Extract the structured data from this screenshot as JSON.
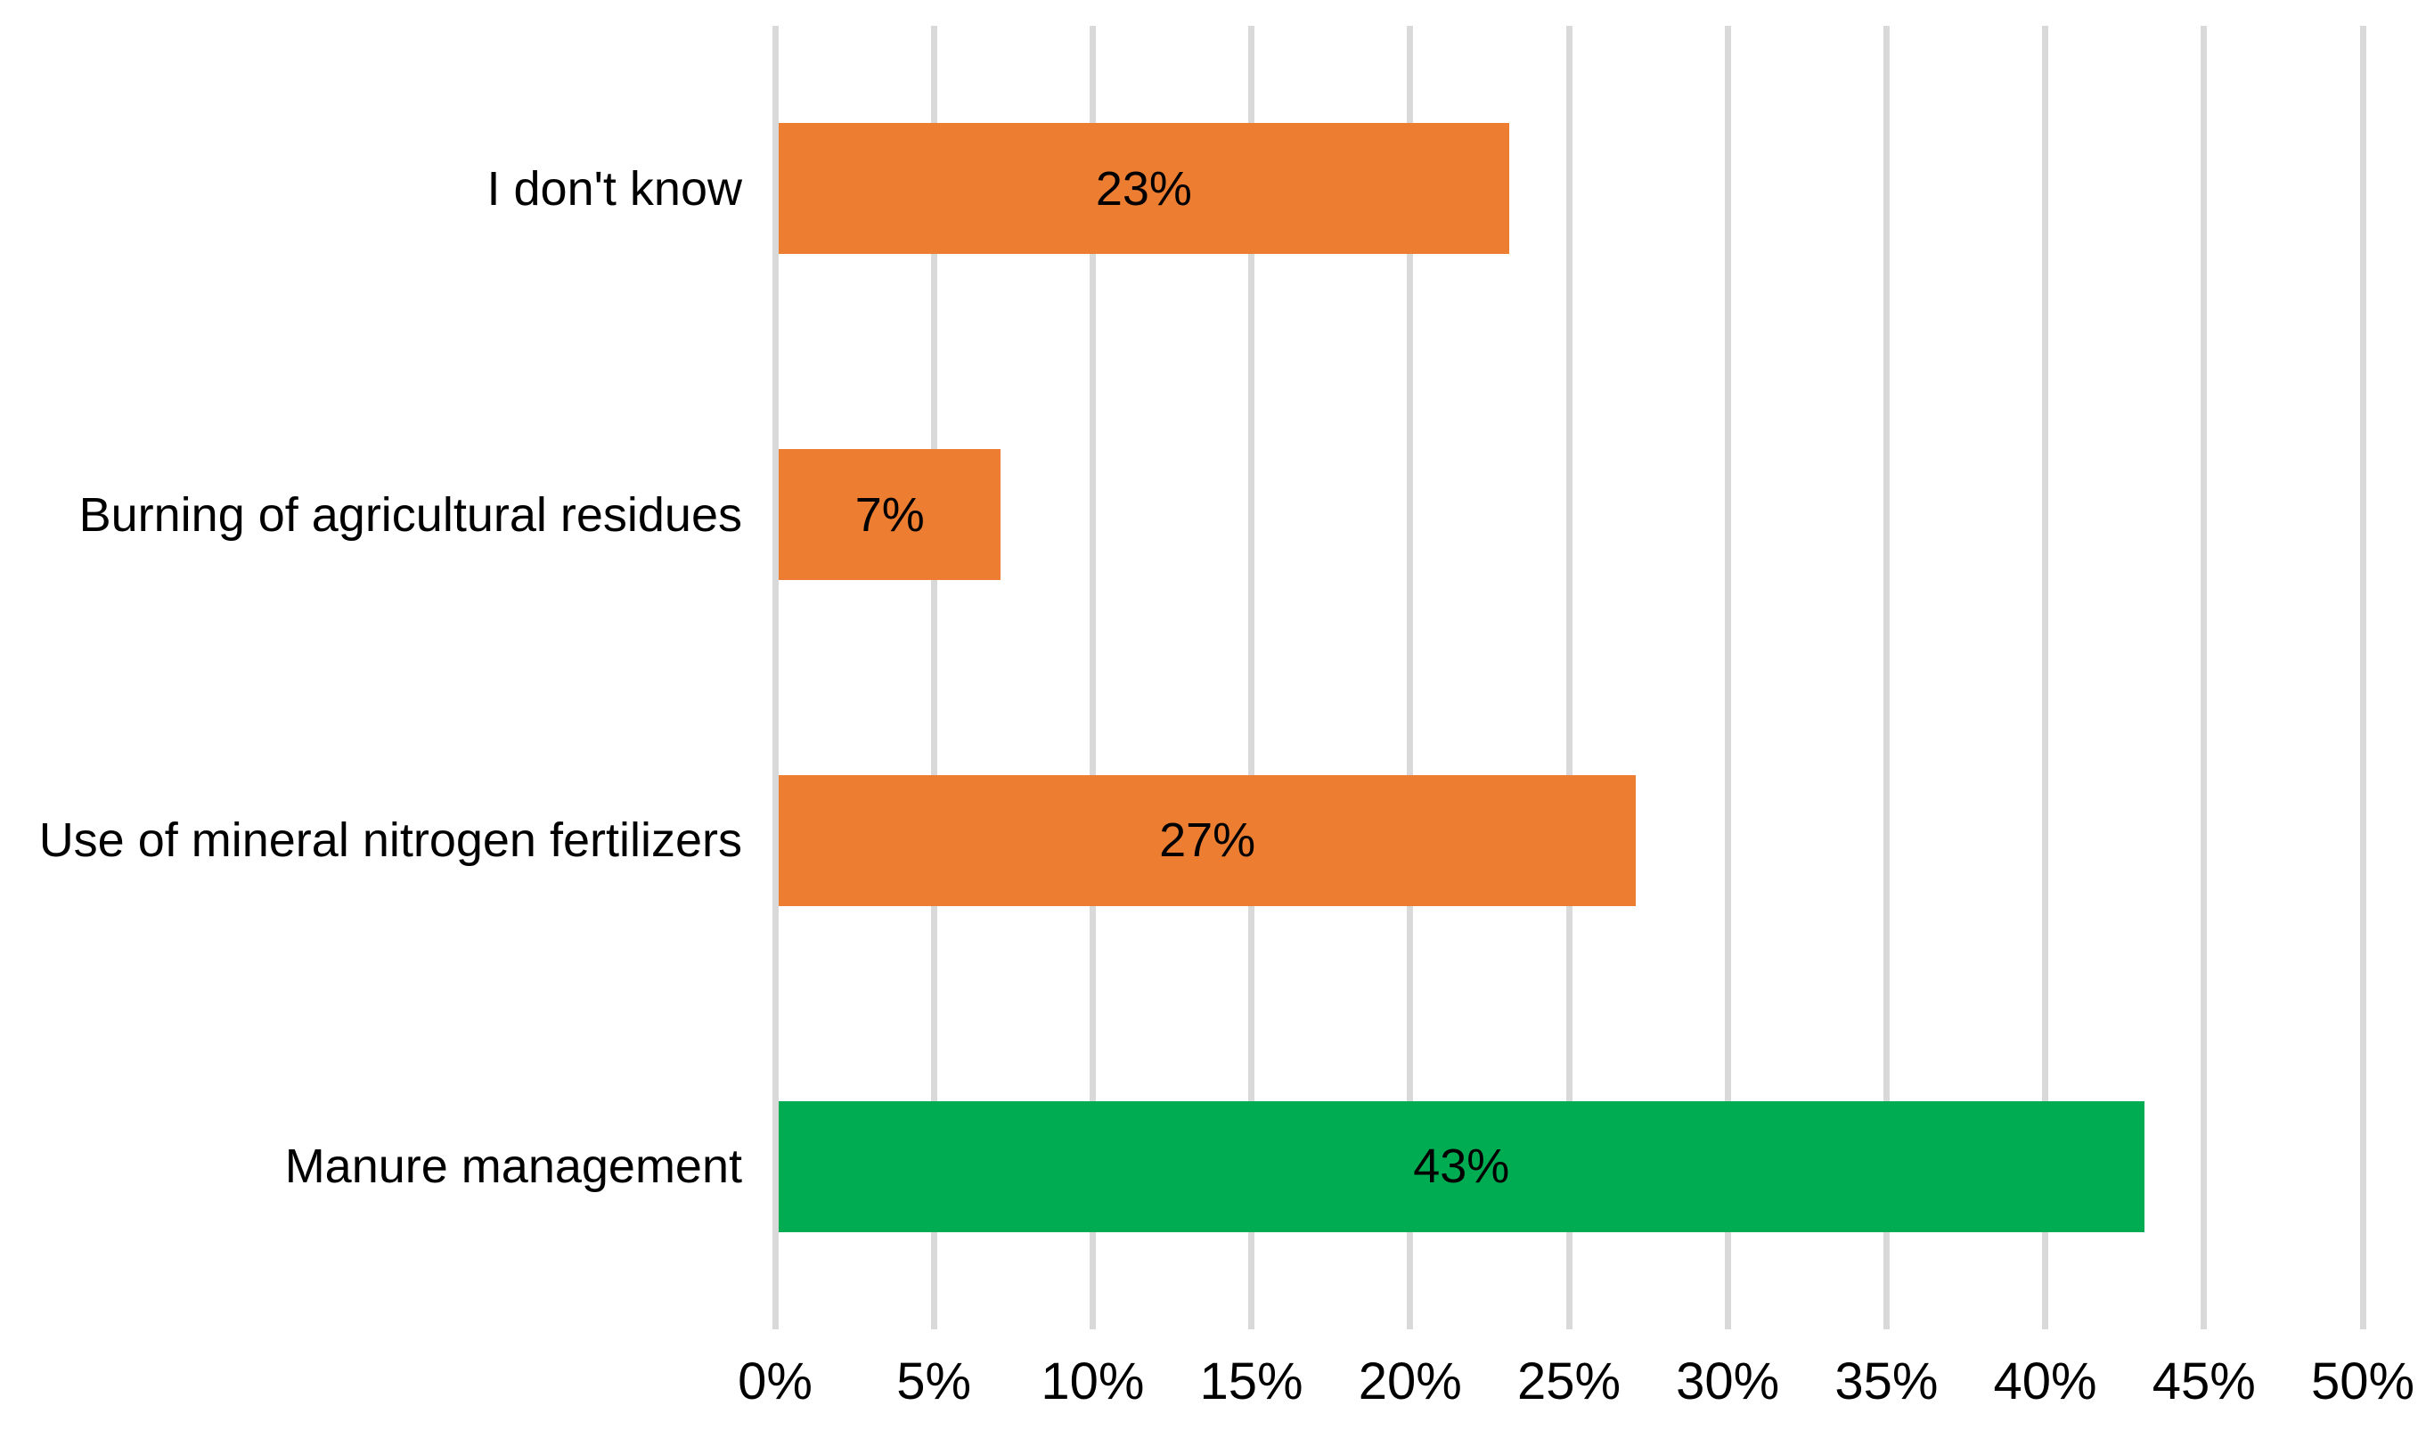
{
  "chart_data": {
    "type": "bar",
    "orientation": "horizontal",
    "title": "",
    "xlabel": "",
    "ylabel": "",
    "legend": "none",
    "grid": "vertical",
    "background": "#FFFFFF",
    "text_color": "#000000",
    "gridline_color": "#D9D9D9",
    "xlim": [
      0,
      50
    ],
    "x_ticks": [
      {
        "value": 0,
        "label": "0%"
      },
      {
        "value": 5,
        "label": "5%"
      },
      {
        "value": 10,
        "label": "10%"
      },
      {
        "value": 15,
        "label": "15%"
      },
      {
        "value": 20,
        "label": "20%"
      },
      {
        "value": 25,
        "label": "25%"
      },
      {
        "value": 30,
        "label": "30%"
      },
      {
        "value": 35,
        "label": "35%"
      },
      {
        "value": 40,
        "label": "40%"
      },
      {
        "value": 45,
        "label": "45%"
      },
      {
        "value": 50,
        "label": "50%"
      }
    ],
    "categories": [
      "I don't know",
      "Burning of agricultural residues",
      "Use of mineral nitrogen fertilizers",
      "Manure management"
    ],
    "values": [
      23,
      7,
      27,
      43
    ],
    "data_labels": [
      "23%",
      "7%",
      "27%",
      "43%"
    ],
    "bar_colors": [
      "#ED7D31",
      "#ED7D31",
      "#ED7D31",
      "#00AC52"
    ],
    "colors": {
      "orange_accent": "#ED7D31",
      "green_accent": "#00AC52",
      "gridline": "#D9D9D9",
      "label_text": "#000000"
    }
  }
}
